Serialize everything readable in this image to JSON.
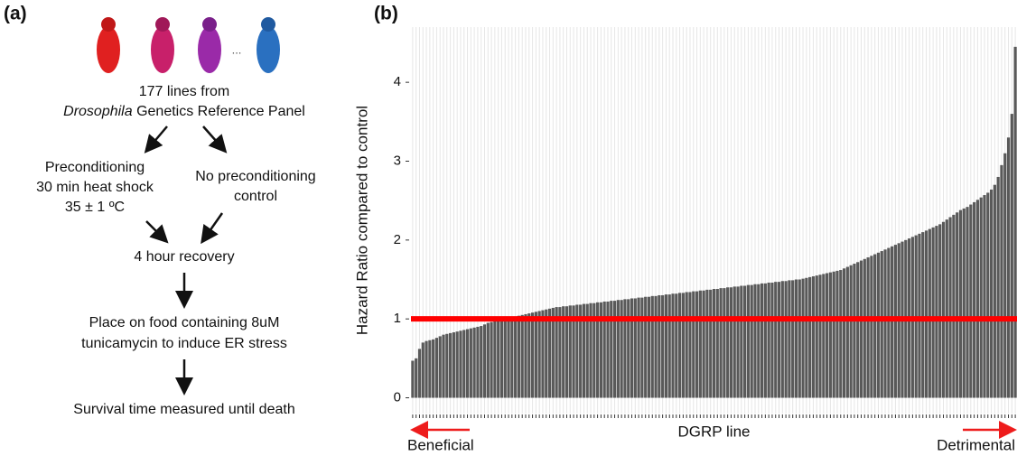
{
  "panel_a": {
    "label": "(a)",
    "ellipsis": "...",
    "source_line1": "177 lines from",
    "source_italic": "Drosophila",
    "source_rest": " Genetics Reference Panel",
    "left_branch": [
      "Preconditioning",
      "30 min heat shock",
      "35 ± 1 ºC"
    ],
    "right_branch": [
      "No preconditioning",
      "control"
    ],
    "recovery": "4 hour recovery",
    "food": [
      "Place on food containing 8uM",
      "tunicamycin to induce ER stress"
    ],
    "survival": "Survival time measured until death"
  },
  "chart_data": {
    "type": "bar",
    "panel_label": "(b)",
    "ylabel": "Hazard Ratio compared to control",
    "xlabel": "DGRP line",
    "left_annotation": "Beneficial",
    "right_annotation": "Detrimental",
    "annotation_color": "#ee1c1c",
    "color": "#595959",
    "hline": 1,
    "hline_color": "#ff0000",
    "grid": true,
    "ylim": [
      -0.2,
      4.7
    ],
    "yticks": [
      0,
      1,
      2,
      3,
      4
    ],
    "categories": [
      null,
      null,
      null,
      null,
      null,
      null,
      null,
      null,
      null,
      null,
      null,
      null,
      null,
      null,
      null,
      null,
      null,
      null,
      null,
      null,
      null,
      null,
      null,
      null,
      null,
      null,
      null,
      null,
      null,
      null,
      null,
      null,
      null,
      null,
      null,
      null,
      null,
      null,
      null,
      null,
      null,
      null,
      null,
      null,
      null,
      null,
      null,
      null,
      null,
      null,
      null,
      null,
      null,
      null,
      null,
      null,
      null,
      null,
      null,
      null,
      null,
      null,
      null,
      null,
      null,
      null,
      null,
      null,
      null,
      null,
      null,
      null,
      null,
      null,
      null,
      null,
      null,
      null,
      null,
      null,
      null,
      null,
      null,
      null,
      null,
      null,
      null,
      null,
      null,
      null,
      null,
      null,
      null,
      null,
      null,
      null,
      null,
      null,
      null,
      null,
      null,
      null,
      null,
      null,
      null,
      null,
      null,
      null,
      null,
      null,
      null,
      null,
      null,
      null,
      null,
      null,
      null,
      null,
      null,
      null,
      null,
      null,
      null,
      null,
      null,
      null,
      null,
      null,
      null,
      null,
      null,
      null,
      null,
      null,
      null,
      null,
      null,
      null,
      null,
      null,
      null,
      null,
      null,
      null,
      null,
      null,
      null,
      null,
      null,
      null,
      null,
      null,
      null,
      null,
      null,
      null,
      null,
      null,
      null,
      null,
      null,
      null,
      null,
      null,
      null,
      null,
      null,
      null,
      null,
      null,
      null,
      null,
      null,
      null,
      null,
      null,
      null
    ],
    "values": [
      0.47,
      0.5,
      0.62,
      0.7,
      0.72,
      0.73,
      0.74,
      0.76,
      0.78,
      0.8,
      0.81,
      0.82,
      0.83,
      0.84,
      0.85,
      0.86,
      0.87,
      0.88,
      0.89,
      0.9,
      0.91,
      0.93,
      0.95,
      0.96,
      0.97,
      0.98,
      0.99,
      1.0,
      1.01,
      1.02,
      1.03,
      1.04,
      1.05,
      1.06,
      1.07,
      1.08,
      1.09,
      1.1,
      1.11,
      1.12,
      1.13,
      1.14,
      1.15,
      1.15,
      1.16,
      1.16,
      1.17,
      1.17,
      1.18,
      1.18,
      1.19,
      1.19,
      1.2,
      1.2,
      1.21,
      1.21,
      1.22,
      1.22,
      1.23,
      1.23,
      1.24,
      1.24,
      1.25,
      1.25,
      1.26,
      1.26,
      1.27,
      1.27,
      1.28,
      1.28,
      1.29,
      1.29,
      1.3,
      1.3,
      1.31,
      1.31,
      1.32,
      1.32,
      1.33,
      1.33,
      1.34,
      1.34,
      1.35,
      1.35,
      1.36,
      1.36,
      1.37,
      1.37,
      1.38,
      1.38,
      1.39,
      1.39,
      1.4,
      1.4,
      1.41,
      1.41,
      1.42,
      1.42,
      1.43,
      1.43,
      1.44,
      1.44,
      1.45,
      1.45,
      1.46,
      1.46,
      1.47,
      1.47,
      1.48,
      1.48,
      1.49,
      1.49,
      1.5,
      1.5,
      1.51,
      1.52,
      1.53,
      1.54,
      1.55,
      1.56,
      1.57,
      1.58,
      1.59,
      1.6,
      1.61,
      1.62,
      1.64,
      1.66,
      1.68,
      1.7,
      1.72,
      1.74,
      1.76,
      1.78,
      1.8,
      1.82,
      1.84,
      1.86,
      1.88,
      1.9,
      1.92,
      1.94,
      1.96,
      1.98,
      2.0,
      2.02,
      2.04,
      2.06,
      2.08,
      2.1,
      2.12,
      2.14,
      2.16,
      2.18,
      2.2,
      2.23,
      2.26,
      2.29,
      2.32,
      2.35,
      2.38,
      2.4,
      2.42,
      2.45,
      2.48,
      2.51,
      2.54,
      2.57,
      2.6,
      2.64,
      2.7,
      2.8,
      2.95,
      3.1,
      3.3,
      3.6,
      4.45
    ]
  }
}
